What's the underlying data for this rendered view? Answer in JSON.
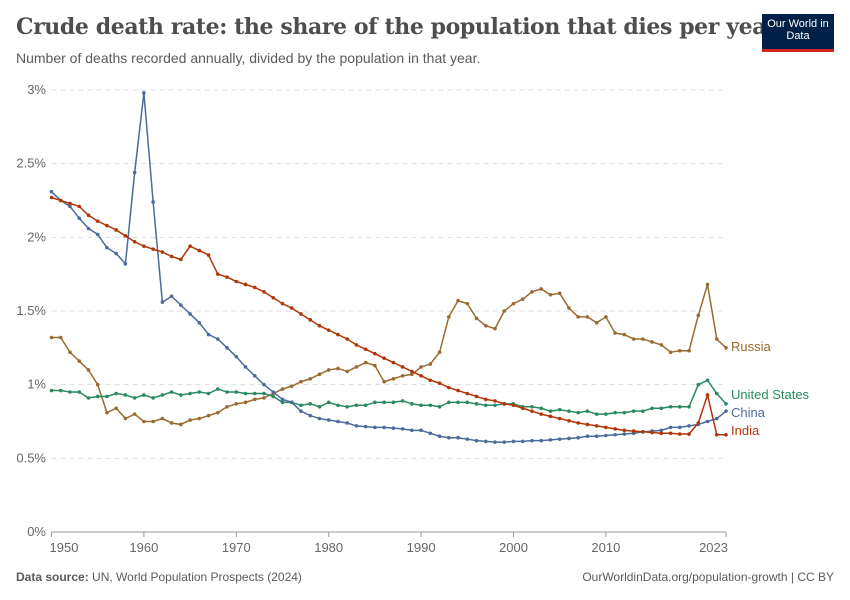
{
  "header": {
    "title": "Crude death rate: the share of the population that dies per year",
    "subtitle": "Number of deaths recorded annually, divided by the population in that year.",
    "logo": "Our World in Data"
  },
  "footer": {
    "source_label": "Data source:",
    "source": "UN, World Population Prospects (2024)",
    "link": "OurWorldinData.org/population-growth | CC BY"
  },
  "chart_data": {
    "type": "line",
    "title": "Crude death rate: the share of the population that dies per year",
    "xlim": [
      1950,
      2023
    ],
    "ylim": [
      0,
      3
    ],
    "grid": "horizontal dashed",
    "legend": "inline-right",
    "yunit": "%",
    "x_ticks": [
      "1950",
      "1960",
      "1970",
      "1980",
      "1990",
      "2000",
      "2010",
      "2023"
    ],
    "y_ticks": [
      "0%",
      "0.5%",
      "1%",
      "1.5%",
      "2%",
      "2.5%",
      "3%"
    ],
    "x_start": 1950,
    "series": [
      {
        "name": "Russia",
        "color": "#9a6a30",
        "values": [
          1.32,
          1.32,
          1.22,
          1.16,
          1.1,
          1.0,
          0.81,
          0.84,
          0.77,
          0.8,
          0.75,
          0.75,
          0.77,
          0.74,
          0.73,
          0.76,
          0.77,
          0.79,
          0.81,
          0.85,
          0.87,
          0.88,
          0.9,
          0.91,
          0.94,
          0.97,
          0.99,
          1.02,
          1.04,
          1.07,
          1.1,
          1.11,
          1.09,
          1.12,
          1.15,
          1.13,
          1.02,
          1.04,
          1.06,
          1.07,
          1.12,
          1.14,
          1.22,
          1.46,
          1.57,
          1.55,
          1.45,
          1.4,
          1.38,
          1.5,
          1.55,
          1.58,
          1.63,
          1.65,
          1.61,
          1.62,
          1.52,
          1.46,
          1.46,
          1.42,
          1.46,
          1.35,
          1.34,
          1.31,
          1.31,
          1.29,
          1.27,
          1.22,
          1.23,
          1.23,
          1.47,
          1.68,
          1.31,
          1.25
        ]
      },
      {
        "name": "United States",
        "color": "#2a8a62",
        "values": [
          0.96,
          0.96,
          0.95,
          0.95,
          0.91,
          0.92,
          0.92,
          0.94,
          0.93,
          0.91,
          0.93,
          0.91,
          0.93,
          0.95,
          0.93,
          0.94,
          0.95,
          0.94,
          0.97,
          0.95,
          0.95,
          0.94,
          0.94,
          0.94,
          0.92,
          0.88,
          0.88,
          0.86,
          0.87,
          0.85,
          0.88,
          0.86,
          0.85,
          0.86,
          0.86,
          0.88,
          0.88,
          0.88,
          0.89,
          0.87,
          0.86,
          0.86,
          0.85,
          0.88,
          0.88,
          0.88,
          0.87,
          0.86,
          0.86,
          0.87,
          0.87,
          0.85,
          0.85,
          0.84,
          0.82,
          0.83,
          0.82,
          0.81,
          0.82,
          0.8,
          0.8,
          0.81,
          0.81,
          0.82,
          0.82,
          0.84,
          0.84,
          0.85,
          0.85,
          0.85,
          1.0,
          1.03,
          0.94,
          0.87
        ]
      },
      {
        "name": "China",
        "color": "#4c6a9c",
        "values": [
          2.31,
          2.25,
          2.21,
          2.13,
          2.06,
          2.02,
          1.93,
          1.89,
          1.82,
          2.44,
          2.98,
          2.24,
          1.56,
          1.6,
          1.54,
          1.48,
          1.42,
          1.34,
          1.31,
          1.25,
          1.19,
          1.12,
          1.06,
          1.0,
          0.95,
          0.9,
          0.88,
          0.82,
          0.79,
          0.77,
          0.76,
          0.75,
          0.74,
          0.72,
          0.715,
          0.71,
          0.71,
          0.705,
          0.7,
          0.69,
          0.69,
          0.67,
          0.65,
          0.64,
          0.64,
          0.63,
          0.62,
          0.615,
          0.61,
          0.61,
          0.615,
          0.615,
          0.62,
          0.62,
          0.625,
          0.63,
          0.635,
          0.64,
          0.65,
          0.65,
          0.655,
          0.66,
          0.665,
          0.67,
          0.68,
          0.685,
          0.69,
          0.71,
          0.71,
          0.72,
          0.73,
          0.75,
          0.77,
          0.82
        ]
      },
      {
        "name": "India",
        "color": "#b13507",
        "values": [
          2.27,
          2.25,
          2.23,
          2.21,
          2.15,
          2.11,
          2.08,
          2.05,
          2.01,
          1.97,
          1.94,
          1.92,
          1.9,
          1.87,
          1.85,
          1.94,
          1.91,
          1.88,
          1.75,
          1.73,
          1.7,
          1.68,
          1.66,
          1.63,
          1.59,
          1.55,
          1.52,
          1.48,
          1.44,
          1.4,
          1.37,
          1.34,
          1.31,
          1.27,
          1.24,
          1.21,
          1.18,
          1.15,
          1.12,
          1.09,
          1.06,
          1.03,
          1.01,
          0.98,
          0.96,
          0.94,
          0.92,
          0.9,
          0.89,
          0.87,
          0.86,
          0.84,
          0.82,
          0.8,
          0.785,
          0.77,
          0.755,
          0.74,
          0.73,
          0.72,
          0.71,
          0.7,
          0.69,
          0.685,
          0.68,
          0.675,
          0.67,
          0.67,
          0.665,
          0.665,
          0.74,
          0.93,
          0.66,
          0.66
        ]
      }
    ]
  }
}
